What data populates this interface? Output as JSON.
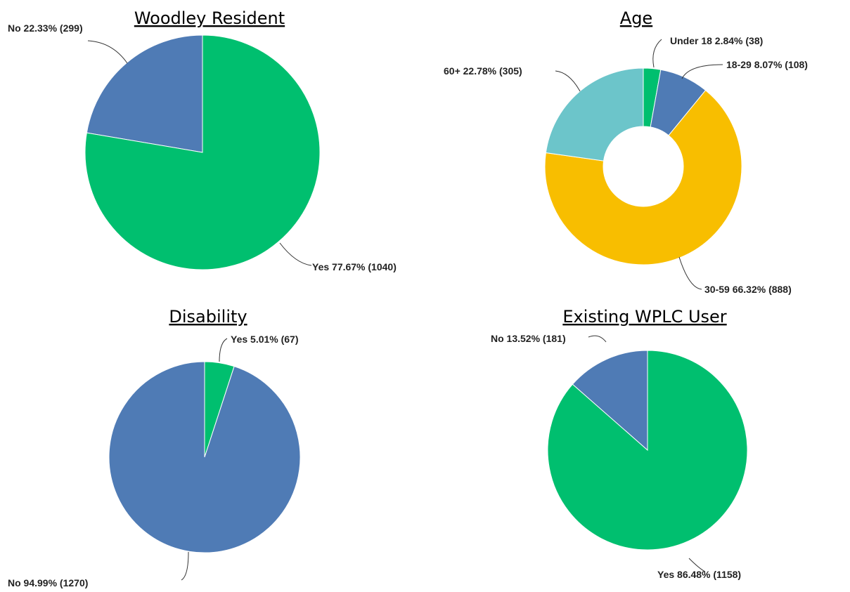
{
  "chart_data": [
    {
      "type": "pie",
      "title": "Woodley Resident",
      "slices": [
        {
          "label": "No",
          "value": 299,
          "percent": "22.33%",
          "text": "No 22.33% (299)",
          "color": "#4f7bb5"
        },
        {
          "label": "Yes",
          "value": 1040,
          "percent": "77.67%",
          "text": "Yes 77.67% (1040)",
          "color": "#00bf6f"
        }
      ]
    },
    {
      "type": "pie",
      "donut": true,
      "title": "Age",
      "slices": [
        {
          "label": "Under 18",
          "value": 38,
          "percent": "2.84%",
          "text": "Under 18 2.84% (38)",
          "color": "#00bf6f"
        },
        {
          "label": "18-29",
          "value": 108,
          "percent": "8.07%",
          "text": "18-29 8.07% (108)",
          "color": "#4f7bb5"
        },
        {
          "label": "30-59",
          "value": 888,
          "percent": "66.32%",
          "text": "30-59 66.32% (888)",
          "color": "#f8be00"
        },
        {
          "label": "60+",
          "value": 305,
          "percent": "22.78%",
          "text": "60+ 22.78% (305)",
          "color": "#6cc5ca"
        }
      ]
    },
    {
      "type": "pie",
      "title": "Disability",
      "slices": [
        {
          "label": "Yes",
          "value": 67,
          "percent": "5.01%",
          "text": "Yes 5.01% (67)",
          "color": "#00bf6f"
        },
        {
          "label": "No",
          "value": 1270,
          "percent": "94.99%",
          "text": "No 94.99% (1270)",
          "color": "#4f7bb5"
        }
      ]
    },
    {
      "type": "pie",
      "title": "Existing WPLC User",
      "slices": [
        {
          "label": "No",
          "value": 181,
          "percent": "13.52%",
          "text": "No 13.52% (181)",
          "color": "#4f7bb5"
        },
        {
          "label": "Yes",
          "value": 1158,
          "percent": "86.48%",
          "text": "Yes 86.48% (1158)",
          "color": "#00bf6f"
        }
      ]
    }
  ]
}
